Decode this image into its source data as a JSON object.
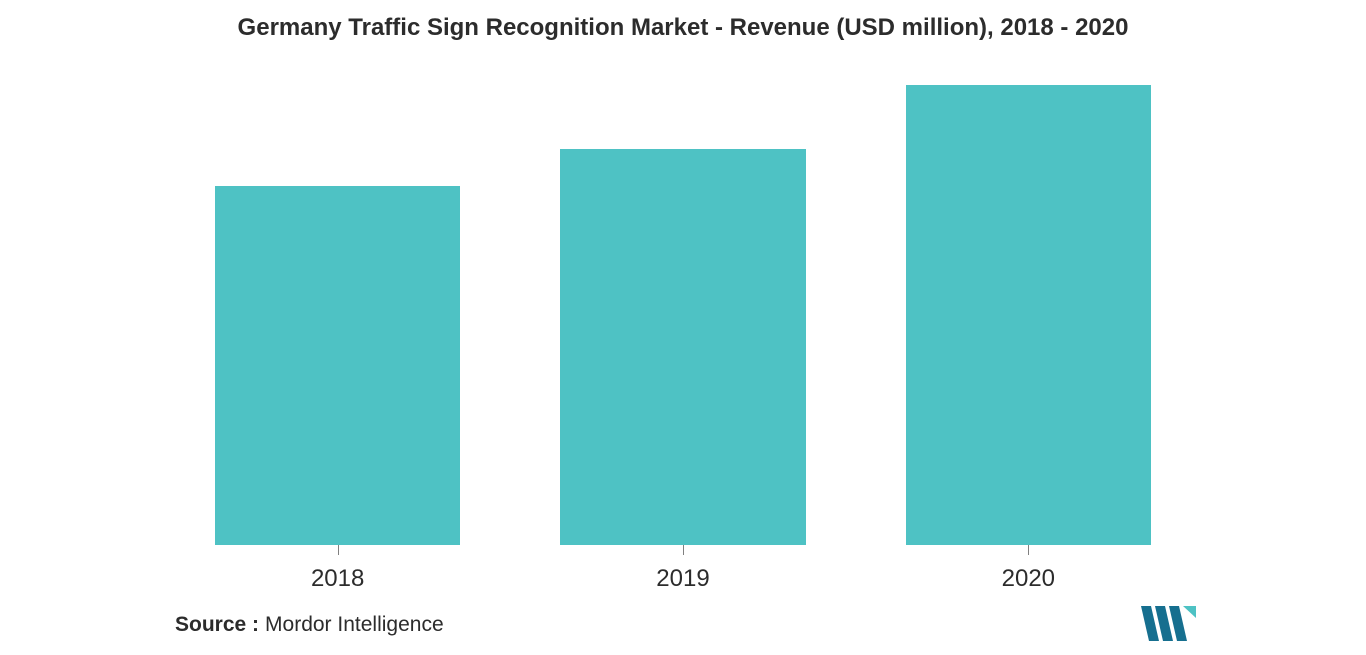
{
  "chart": {
    "type": "bar",
    "title": "Germany Traffic Sign Recognition Market - Revenue (USD million), 2018 - 2020",
    "title_fontsize": 24,
    "title_color": "#2c2c2c",
    "categories": [
      "2018",
      "2019",
      "2020"
    ],
    "values": [
      78,
      86,
      100
    ],
    "ylim": [
      0,
      100
    ],
    "bar_color": "#4ec2c4",
    "bar_width_pct": 71,
    "background_color": "#ffffff",
    "xlabel_fontsize": 24,
    "xlabel_color": "#2c2c2c",
    "tick_color": "#808080"
  },
  "footer": {
    "label": "Source :",
    "value": "Mordor Intelligence",
    "fontsize": 21,
    "label_color": "#2c2c2c",
    "value_color": "#2c2c2c"
  },
  "logo": {
    "stripe_color": "#166f8f",
    "accent_color": "#4ec2c4"
  }
}
